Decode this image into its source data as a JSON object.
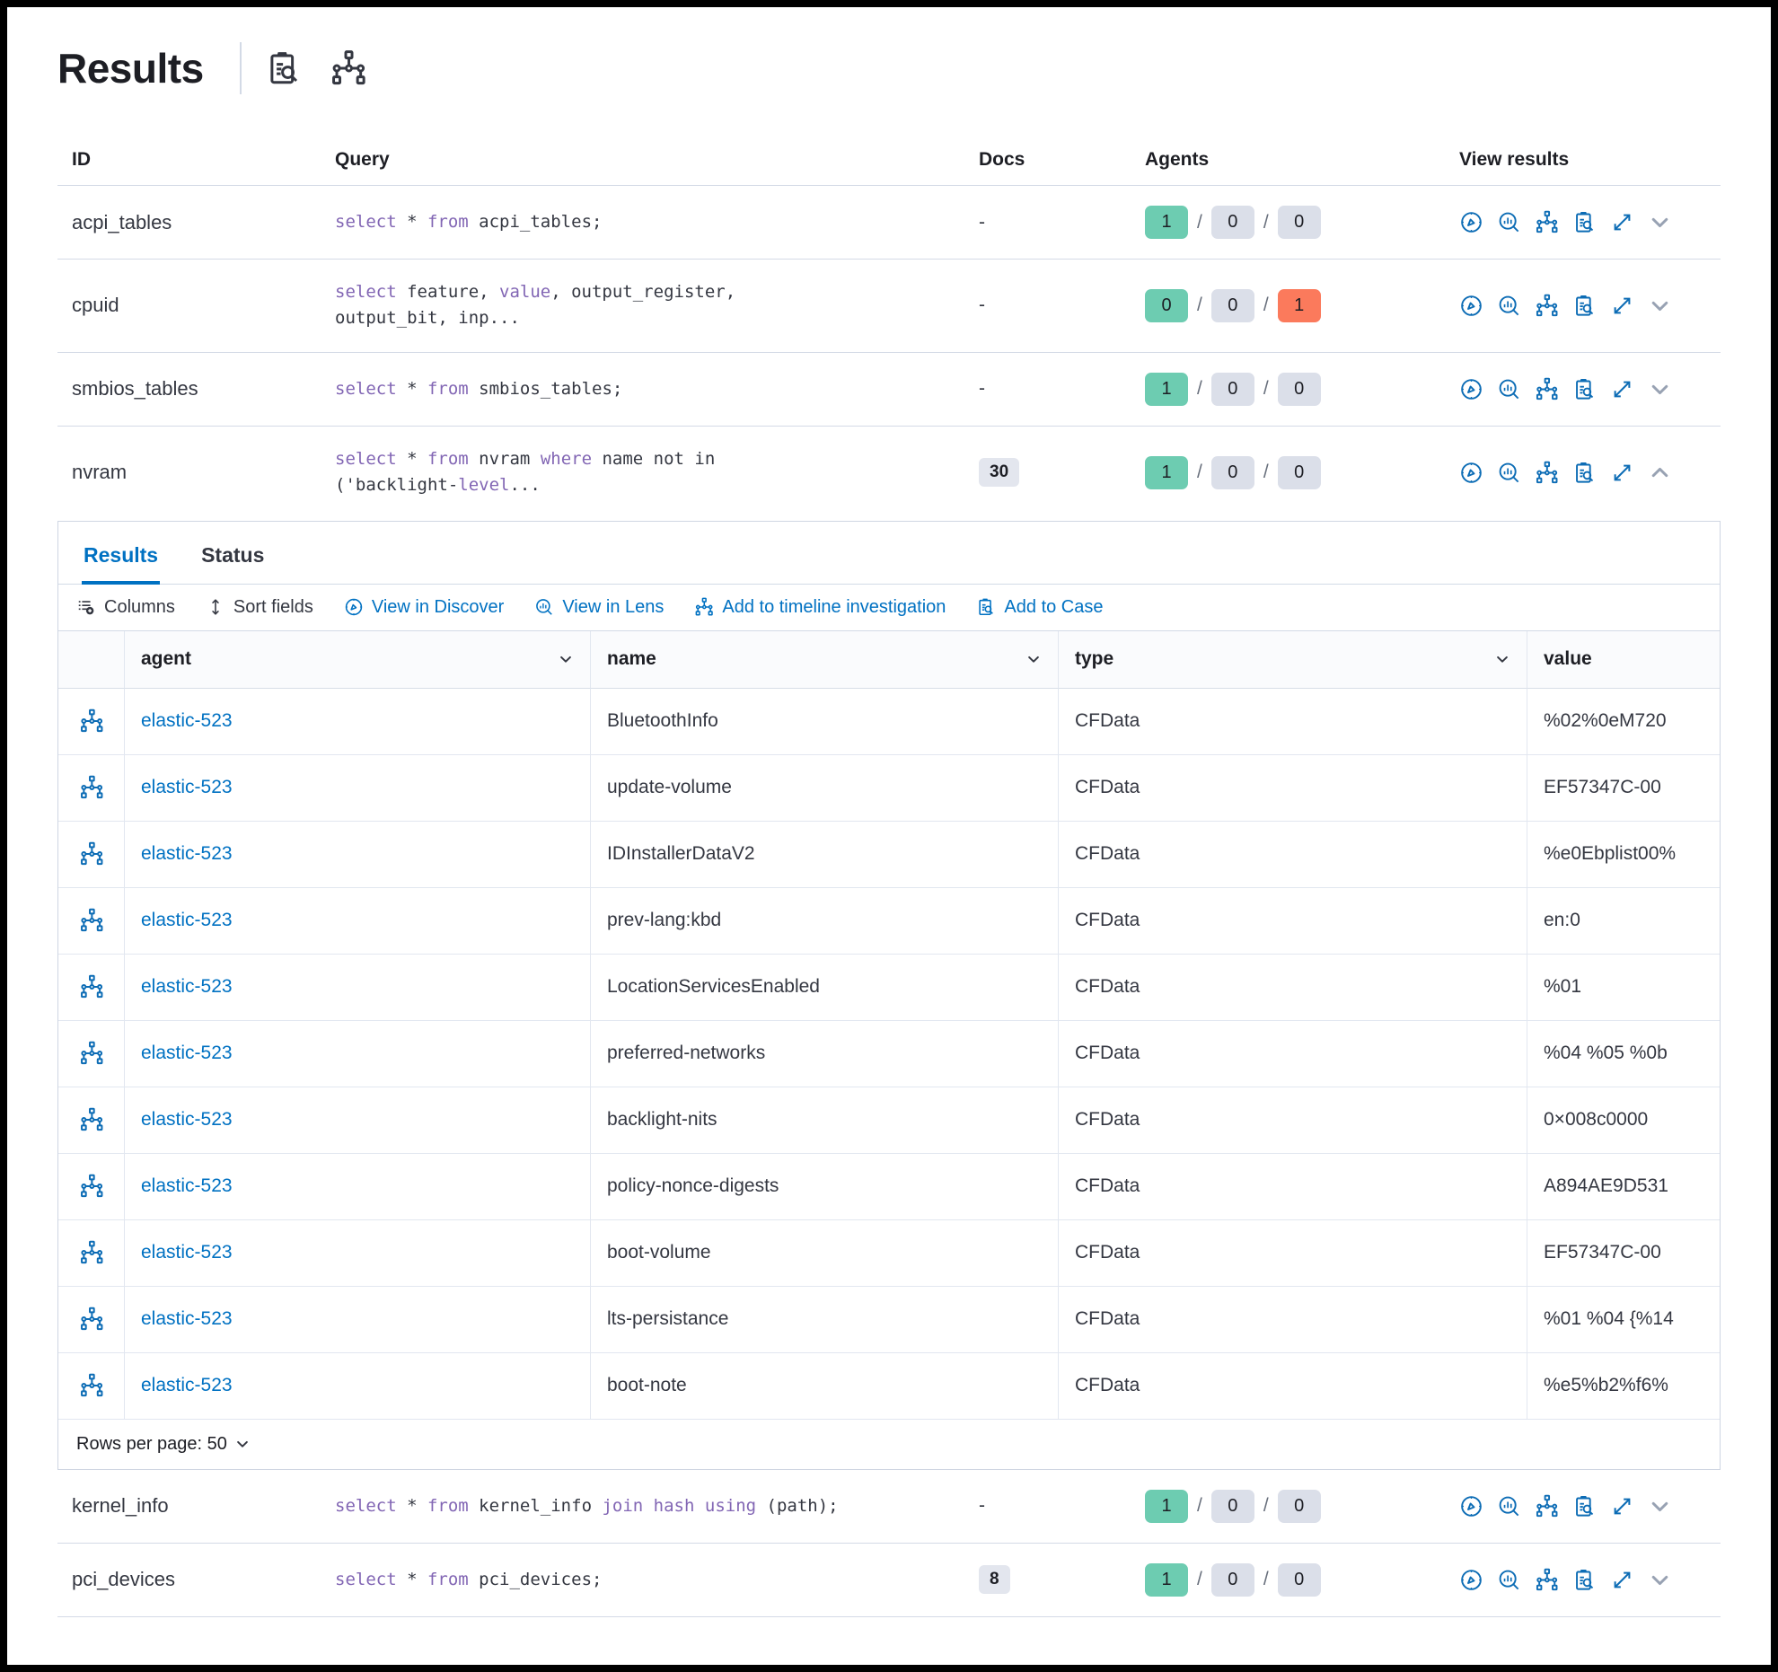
{
  "header": {
    "title": "Results",
    "icons": [
      "clipboard-search-icon",
      "network-graph-icon"
    ]
  },
  "queries_table": {
    "columns": {
      "id": "ID",
      "query": "Query",
      "docs": "Docs",
      "agents": "Agents",
      "view_results": "View results"
    },
    "rows": [
      {
        "id": "acpi_tables",
        "query": [
          [
            "select",
            1
          ],
          [
            " * ",
            0
          ],
          [
            "from",
            1
          ],
          [
            " acpi_tables;",
            0
          ]
        ],
        "docs": {
          "kind": "dash",
          "value": "-"
        },
        "agents": [
          {
            "value": "1",
            "color": "green"
          },
          {
            "value": "0",
            "color": "gray"
          },
          {
            "value": "0",
            "color": "gray"
          }
        ],
        "expanded": false
      },
      {
        "id": "cpuid",
        "query": [
          [
            "select",
            1
          ],
          [
            " feature, ",
            0
          ],
          [
            "value",
            1
          ],
          [
            ", output_register, output_bit, inp...",
            0
          ]
        ],
        "docs": {
          "kind": "dash",
          "value": "-"
        },
        "agents": [
          {
            "value": "0",
            "color": "green"
          },
          {
            "value": "0",
            "color": "gray"
          },
          {
            "value": "1",
            "color": "red"
          }
        ],
        "expanded": false
      },
      {
        "id": "smbios_tables",
        "query": [
          [
            "select",
            1
          ],
          [
            " * ",
            0
          ],
          [
            "from",
            1
          ],
          [
            " smbios_tables;",
            0
          ]
        ],
        "docs": {
          "kind": "dash",
          "value": "-"
        },
        "agents": [
          {
            "value": "1",
            "color": "green"
          },
          {
            "value": "0",
            "color": "gray"
          },
          {
            "value": "0",
            "color": "gray"
          }
        ],
        "expanded": false
      },
      {
        "id": "nvram",
        "query": [
          [
            "select",
            1
          ],
          [
            " * ",
            0
          ],
          [
            "from",
            1
          ],
          [
            " nvram ",
            0
          ],
          [
            "where",
            1
          ],
          [
            " name not in ('backlight-",
            0
          ],
          [
            "level",
            1
          ],
          [
            "...",
            0
          ]
        ],
        "docs": {
          "kind": "badge",
          "value": "30"
        },
        "agents": [
          {
            "value": "1",
            "color": "green"
          },
          {
            "value": "0",
            "color": "gray"
          },
          {
            "value": "0",
            "color": "gray"
          }
        ],
        "expanded": true
      },
      {
        "id": "kernel_info",
        "query": [
          [
            "select",
            1
          ],
          [
            " * ",
            0
          ],
          [
            "from",
            1
          ],
          [
            " kernel_info ",
            0
          ],
          [
            "join",
            1
          ],
          [
            " ",
            0
          ],
          [
            "hash",
            1
          ],
          [
            " ",
            0
          ],
          [
            "using",
            1
          ],
          [
            " (path);",
            0
          ]
        ],
        "docs": {
          "kind": "dash",
          "value": "-"
        },
        "agents": [
          {
            "value": "1",
            "color": "green"
          },
          {
            "value": "0",
            "color": "gray"
          },
          {
            "value": "0",
            "color": "gray"
          }
        ],
        "expanded": false
      },
      {
        "id": "pci_devices",
        "query": [
          [
            "select",
            1
          ],
          [
            " * ",
            0
          ],
          [
            "from",
            1
          ],
          [
            " pci_devices;",
            0
          ]
        ],
        "docs": {
          "kind": "badge",
          "value": "8"
        },
        "agents": [
          {
            "value": "1",
            "color": "green"
          },
          {
            "value": "0",
            "color": "gray"
          },
          {
            "value": "0",
            "color": "gray"
          }
        ],
        "expanded": false
      }
    ],
    "row_action_icons": [
      "view-in-discover-icon",
      "view-in-lens-icon",
      "add-to-timeline-icon",
      "add-to-case-icon",
      "expand-icon"
    ]
  },
  "panel": {
    "tabs": [
      {
        "label": "Results",
        "active": true
      },
      {
        "label": "Status",
        "active": false
      }
    ],
    "toolbar": [
      {
        "label": "Columns",
        "icon": "columns-icon",
        "style": "dark"
      },
      {
        "label": "Sort fields",
        "icon": "sort-icon",
        "style": "dark"
      },
      {
        "label": "View in Discover",
        "icon": "discover-icon",
        "style": "link"
      },
      {
        "label": "View in Lens",
        "icon": "lens-icon",
        "style": "link"
      },
      {
        "label": "Add to timeline investigation",
        "icon": "timeline-icon",
        "style": "link"
      },
      {
        "label": "Add to Case",
        "icon": "case-icon",
        "style": "link"
      }
    ],
    "grid": {
      "columns": [
        "agent",
        "name",
        "type",
        "value"
      ],
      "rows": [
        {
          "agent": "elastic-523",
          "name": "BluetoothInfo",
          "type": "CFData",
          "value": "%02%0eM720"
        },
        {
          "agent": "elastic-523",
          "name": "update-volume",
          "type": "CFData",
          "value": "EF57347C-00"
        },
        {
          "agent": "elastic-523",
          "name": "IDInstallerDataV2",
          "type": "CFData",
          "value": "%e0Ebplist00%"
        },
        {
          "agent": "elastic-523",
          "name": "prev-lang:kbd",
          "type": "CFData",
          "value": "en:0"
        },
        {
          "agent": "elastic-523",
          "name": "LocationServicesEnabled",
          "type": "CFData",
          "value": "%01"
        },
        {
          "agent": "elastic-523",
          "name": "preferred-networks",
          "type": "CFData",
          "value": "%04 %05 %0b"
        },
        {
          "agent": "elastic-523",
          "name": "backlight-nits",
          "type": "CFData",
          "value": "0×008c0000"
        },
        {
          "agent": "elastic-523",
          "name": "policy-nonce-digests",
          "type": "CFData",
          "value": "A894AE9D531"
        },
        {
          "agent": "elastic-523",
          "name": "boot-volume",
          "type": "CFData",
          "value": "EF57347C-00"
        },
        {
          "agent": "elastic-523",
          "name": "lts-persistance",
          "type": "CFData",
          "value": "%01 %04 {%14"
        },
        {
          "agent": "elastic-523",
          "name": "boot-note",
          "type": "CFData",
          "value": "%e5%b2%f6%"
        }
      ]
    },
    "footer": {
      "rows_per_page_label": "Rows per page: 50"
    }
  },
  "colors": {
    "primary_blue": "#0071c2",
    "icon_blue": "#0c6cb5",
    "badge_green": "#6dccb1",
    "badge_gray": "#dbdfe9",
    "badge_red": "#fb7a5c",
    "keyword_purple": "#8266b4",
    "border": "#d3dae6"
  }
}
